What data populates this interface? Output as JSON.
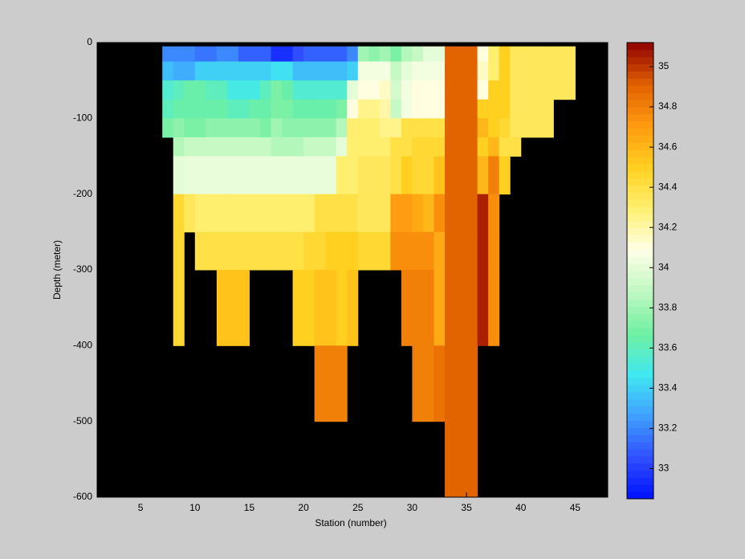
{
  "chart_data": {
    "type": "heatmap",
    "xlabel": "Station (number)",
    "ylabel": "Depth (meter)",
    "xlim": [
      1,
      48
    ],
    "ylim": [
      -600,
      0
    ],
    "xticks": [
      5,
      10,
      15,
      20,
      25,
      30,
      35,
      40,
      45
    ],
    "yticks": [
      0,
      -100,
      -200,
      -300,
      -400,
      -500,
      -600
    ],
    "background": "#000000",
    "x": [
      7,
      8,
      9,
      10,
      11,
      12,
      13,
      14,
      15,
      16,
      17,
      18,
      19,
      20,
      21,
      22,
      23,
      24,
      25,
      26,
      27,
      28,
      29,
      30,
      31,
      32,
      33,
      34,
      35,
      36,
      37,
      38,
      39,
      40,
      41,
      42,
      43,
      44
    ],
    "y_edges": [
      -5,
      -25,
      -50,
      -75,
      -100,
      -125,
      -150,
      -200,
      -250,
      -300,
      -400,
      -500,
      -600
    ],
    "z": [
      [
        33.2,
        33.2,
        33.2,
        33.15,
        33.15,
        33.2,
        33.2,
        33.1,
        33.1,
        33.1,
        32.95,
        32.95,
        33.05,
        33.1,
        33.1,
        33.1,
        33.1,
        33.2,
        33.8,
        33.75,
        33.8,
        33.7,
        33.85,
        33.9,
        34.0,
        34.0,
        34.9,
        34.9,
        34.9,
        34.1,
        34.3,
        34.5,
        34.35,
        34.35,
        34.35,
        34.35,
        34.35,
        34.35
      ],
      [
        33.35,
        33.3,
        33.3,
        33.4,
        33.4,
        33.4,
        33.4,
        33.4,
        33.4,
        33.4,
        33.45,
        33.45,
        33.35,
        33.35,
        33.35,
        33.35,
        33.35,
        33.4,
        34.05,
        34.05,
        34.05,
        33.9,
        34.0,
        34.05,
        34.05,
        34.05,
        34.9,
        34.9,
        34.9,
        34.15,
        34.3,
        34.5,
        34.35,
        34.35,
        34.35,
        34.35,
        34.35,
        34.35
      ],
      [
        33.55,
        33.6,
        33.65,
        33.65,
        33.6,
        33.6,
        33.5,
        33.5,
        33.5,
        33.6,
        33.7,
        33.65,
        33.55,
        33.55,
        33.55,
        33.55,
        33.55,
        34.0,
        34.1,
        34.1,
        34.15,
        33.95,
        34.05,
        34.1,
        34.1,
        34.1,
        34.9,
        34.9,
        34.9,
        34.1,
        34.5,
        34.5,
        34.35,
        34.35,
        34.35,
        34.35,
        34.35,
        34.35
      ],
      [
        33.6,
        33.65,
        33.65,
        33.65,
        33.65,
        33.65,
        33.6,
        33.6,
        33.65,
        33.65,
        33.7,
        33.7,
        33.65,
        33.65,
        33.65,
        33.65,
        33.7,
        34.1,
        34.25,
        34.25,
        34.2,
        33.9,
        34.05,
        34.1,
        34.1,
        34.1,
        34.9,
        34.9,
        34.9,
        34.5,
        34.5,
        34.5,
        34.35,
        34.35,
        34.35,
        34.35,
        null,
        null
      ],
      [
        33.7,
        33.75,
        33.7,
        33.7,
        33.75,
        33.75,
        33.75,
        33.75,
        33.75,
        33.7,
        33.8,
        33.75,
        33.75,
        33.75,
        33.75,
        33.75,
        33.85,
        34.3,
        34.3,
        34.3,
        34.25,
        34.25,
        34.4,
        34.4,
        34.4,
        34.4,
        34.9,
        34.9,
        34.9,
        34.6,
        34.5,
        34.45,
        34.35,
        34.35,
        34.35,
        34.35,
        null,
        null
      ],
      [
        null,
        33.85,
        33.9,
        33.9,
        33.9,
        33.9,
        33.9,
        33.9,
        33.9,
        33.9,
        33.85,
        33.85,
        33.85,
        33.9,
        33.9,
        33.9,
        34.0,
        34.3,
        34.3,
        34.3,
        34.3,
        34.4,
        34.4,
        34.45,
        34.45,
        34.45,
        34.9,
        34.9,
        34.9,
        34.5,
        34.6,
        34.4,
        34.4,
        null,
        null,
        null,
        null,
        null
      ],
      [
        null,
        34.0,
        34.02,
        34.02,
        34.02,
        34.02,
        34.02,
        34.02,
        34.02,
        34.02,
        34.02,
        34.02,
        34.02,
        34.02,
        34.02,
        34.02,
        34.3,
        34.3,
        34.35,
        34.35,
        34.35,
        34.4,
        34.5,
        34.45,
        34.45,
        34.55,
        34.9,
        34.9,
        34.9,
        34.6,
        34.8,
        34.5,
        null,
        null,
        null,
        null,
        null,
        null
      ],
      [
        null,
        34.45,
        34.35,
        34.3,
        34.3,
        34.3,
        34.3,
        34.3,
        34.3,
        34.3,
        34.3,
        34.3,
        34.3,
        34.3,
        34.4,
        34.4,
        34.4,
        34.4,
        34.35,
        34.35,
        34.35,
        34.7,
        34.7,
        34.65,
        34.6,
        34.75,
        34.9,
        34.9,
        34.9,
        35.05,
        34.75,
        null,
        null,
        null,
        null,
        null,
        null,
        null
      ],
      [
        null,
        34.45,
        null,
        34.4,
        34.4,
        34.4,
        34.4,
        34.4,
        34.4,
        34.4,
        34.4,
        34.4,
        34.4,
        34.45,
        34.45,
        34.5,
        34.5,
        34.5,
        34.45,
        34.45,
        34.45,
        34.75,
        34.75,
        34.75,
        34.75,
        34.65,
        34.9,
        34.9,
        34.9,
        35.05,
        34.75,
        null,
        null,
        null,
        null,
        null,
        null,
        null
      ],
      [
        null,
        34.45,
        null,
        null,
        null,
        34.55,
        34.55,
        34.55,
        null,
        null,
        null,
        null,
        34.5,
        34.5,
        34.55,
        34.55,
        34.5,
        34.55,
        null,
        null,
        null,
        null,
        34.8,
        34.8,
        34.8,
        34.65,
        34.9,
        34.9,
        34.9,
        35.05,
        34.75,
        null,
        null,
        null,
        null,
        null,
        null,
        null
      ],
      [
        null,
        null,
        null,
        null,
        null,
        null,
        null,
        null,
        null,
        null,
        null,
        null,
        null,
        null,
        34.8,
        34.8,
        34.8,
        null,
        null,
        null,
        null,
        null,
        null,
        34.8,
        34.8,
        34.85,
        34.9,
        34.9,
        34.9,
        null,
        null,
        null,
        null,
        null,
        null,
        null,
        null,
        null
      ],
      [
        null,
        null,
        null,
        null,
        null,
        null,
        null,
        null,
        null,
        null,
        null,
        null,
        null,
        null,
        null,
        null,
        null,
        null,
        null,
        null,
        null,
        null,
        null,
        null,
        null,
        null,
        34.9,
        34.9,
        34.9,
        null,
        null,
        null,
        null,
        null,
        null,
        null,
        null,
        null
      ]
    ],
    "clim": [
      32.85,
      35.12
    ],
    "cticks": [
      33,
      33.2,
      33.4,
      33.6,
      33.8,
      34,
      34.2,
      34.4,
      34.6,
      34.8,
      35
    ],
    "colormap": [
      "#0010ff",
      "#3050ff",
      "#40a0ff",
      "#40e8f0",
      "#70f0a0",
      "#c0f8c0",
      "#ffffe8",
      "#fff070",
      "#ffd020",
      "#ff9a10",
      "#e06000",
      "#900000"
    ]
  }
}
